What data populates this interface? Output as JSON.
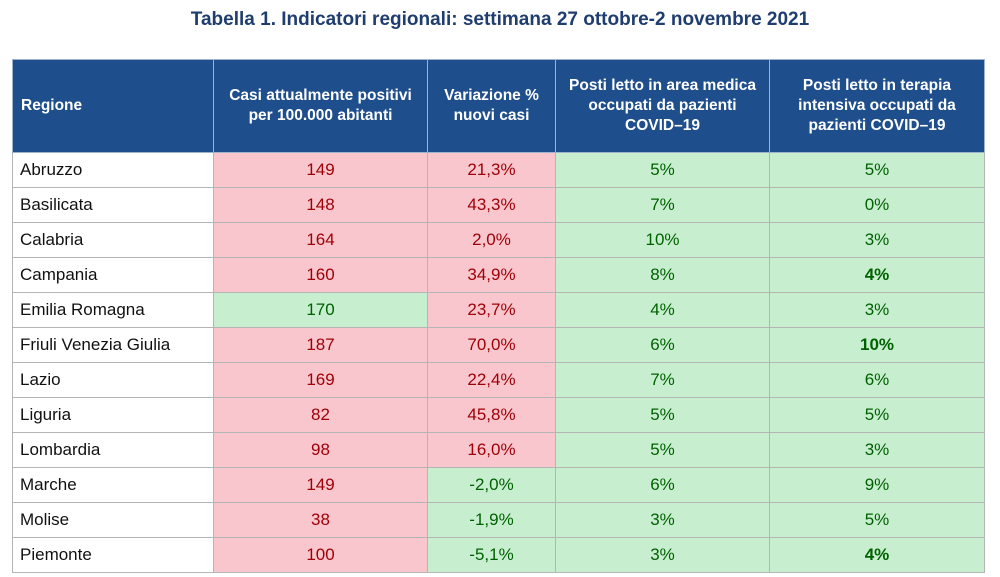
{
  "title": "Tabella 1. Indicatori regionali: settimana 27 ottobre-2 novembre 2021",
  "colors": {
    "header_bg": "#1f4e8c",
    "red_fill": "#f9c6cd",
    "red_text": "#9c0006",
    "green_fill": "#c7efcf",
    "green_text": "#006100"
  },
  "headers": [
    "Regione",
    "Casi attualmente positivi per 100.000 abitanti",
    "Variazione % nuovi casi",
    "Posti letto in area medica occupati da pazienti COVID–19",
    "Posti letto in terapia intensiva occupati da pazienti COVID–19"
  ],
  "rows": [
    {
      "regione": "Abruzzo",
      "casi": "149",
      "variazione": "21,3%",
      "area_medica": "5%",
      "terapia_intensiva": "5%"
    },
    {
      "regione": "Basilicata",
      "casi": "148",
      "variazione": "43,3%",
      "area_medica": "7%",
      "terapia_intensiva": "0%"
    },
    {
      "regione": "Calabria",
      "casi": "164",
      "variazione": "2,0%",
      "area_medica": "10%",
      "terapia_intensiva": "3%"
    },
    {
      "regione": "Campania",
      "casi": "160",
      "variazione": "34,9%",
      "area_medica": "8%",
      "terapia_intensiva": "4%"
    },
    {
      "regione": "Emilia Romagna",
      "casi": "170",
      "variazione": "23,7%",
      "area_medica": "4%",
      "terapia_intensiva": "3%"
    },
    {
      "regione": "Friuli Venezia Giulia",
      "casi": "187",
      "variazione": "70,0%",
      "area_medica": "6%",
      "terapia_intensiva": "10%"
    },
    {
      "regione": "Lazio",
      "casi": "169",
      "variazione": "22,4%",
      "area_medica": "7%",
      "terapia_intensiva": "6%"
    },
    {
      "regione": "Liguria",
      "casi": "82",
      "variazione": "45,8%",
      "area_medica": "5%",
      "terapia_intensiva": "5%"
    },
    {
      "regione": "Lombardia",
      "casi": "98",
      "variazione": "16,0%",
      "area_medica": "5%",
      "terapia_intensiva": "3%"
    },
    {
      "regione": "Marche",
      "casi": "149",
      "variazione": "-2,0%",
      "area_medica": "6%",
      "terapia_intensiva": "9%"
    },
    {
      "regione": "Molise",
      "casi": "38",
      "variazione": "-1,9%",
      "area_medica": "3%",
      "terapia_intensiva": "5%"
    },
    {
      "regione": "Piemonte",
      "casi": "100",
      "variazione": "-5,1%",
      "area_medica": "3%",
      "terapia_intensiva": "4%"
    }
  ]
}
